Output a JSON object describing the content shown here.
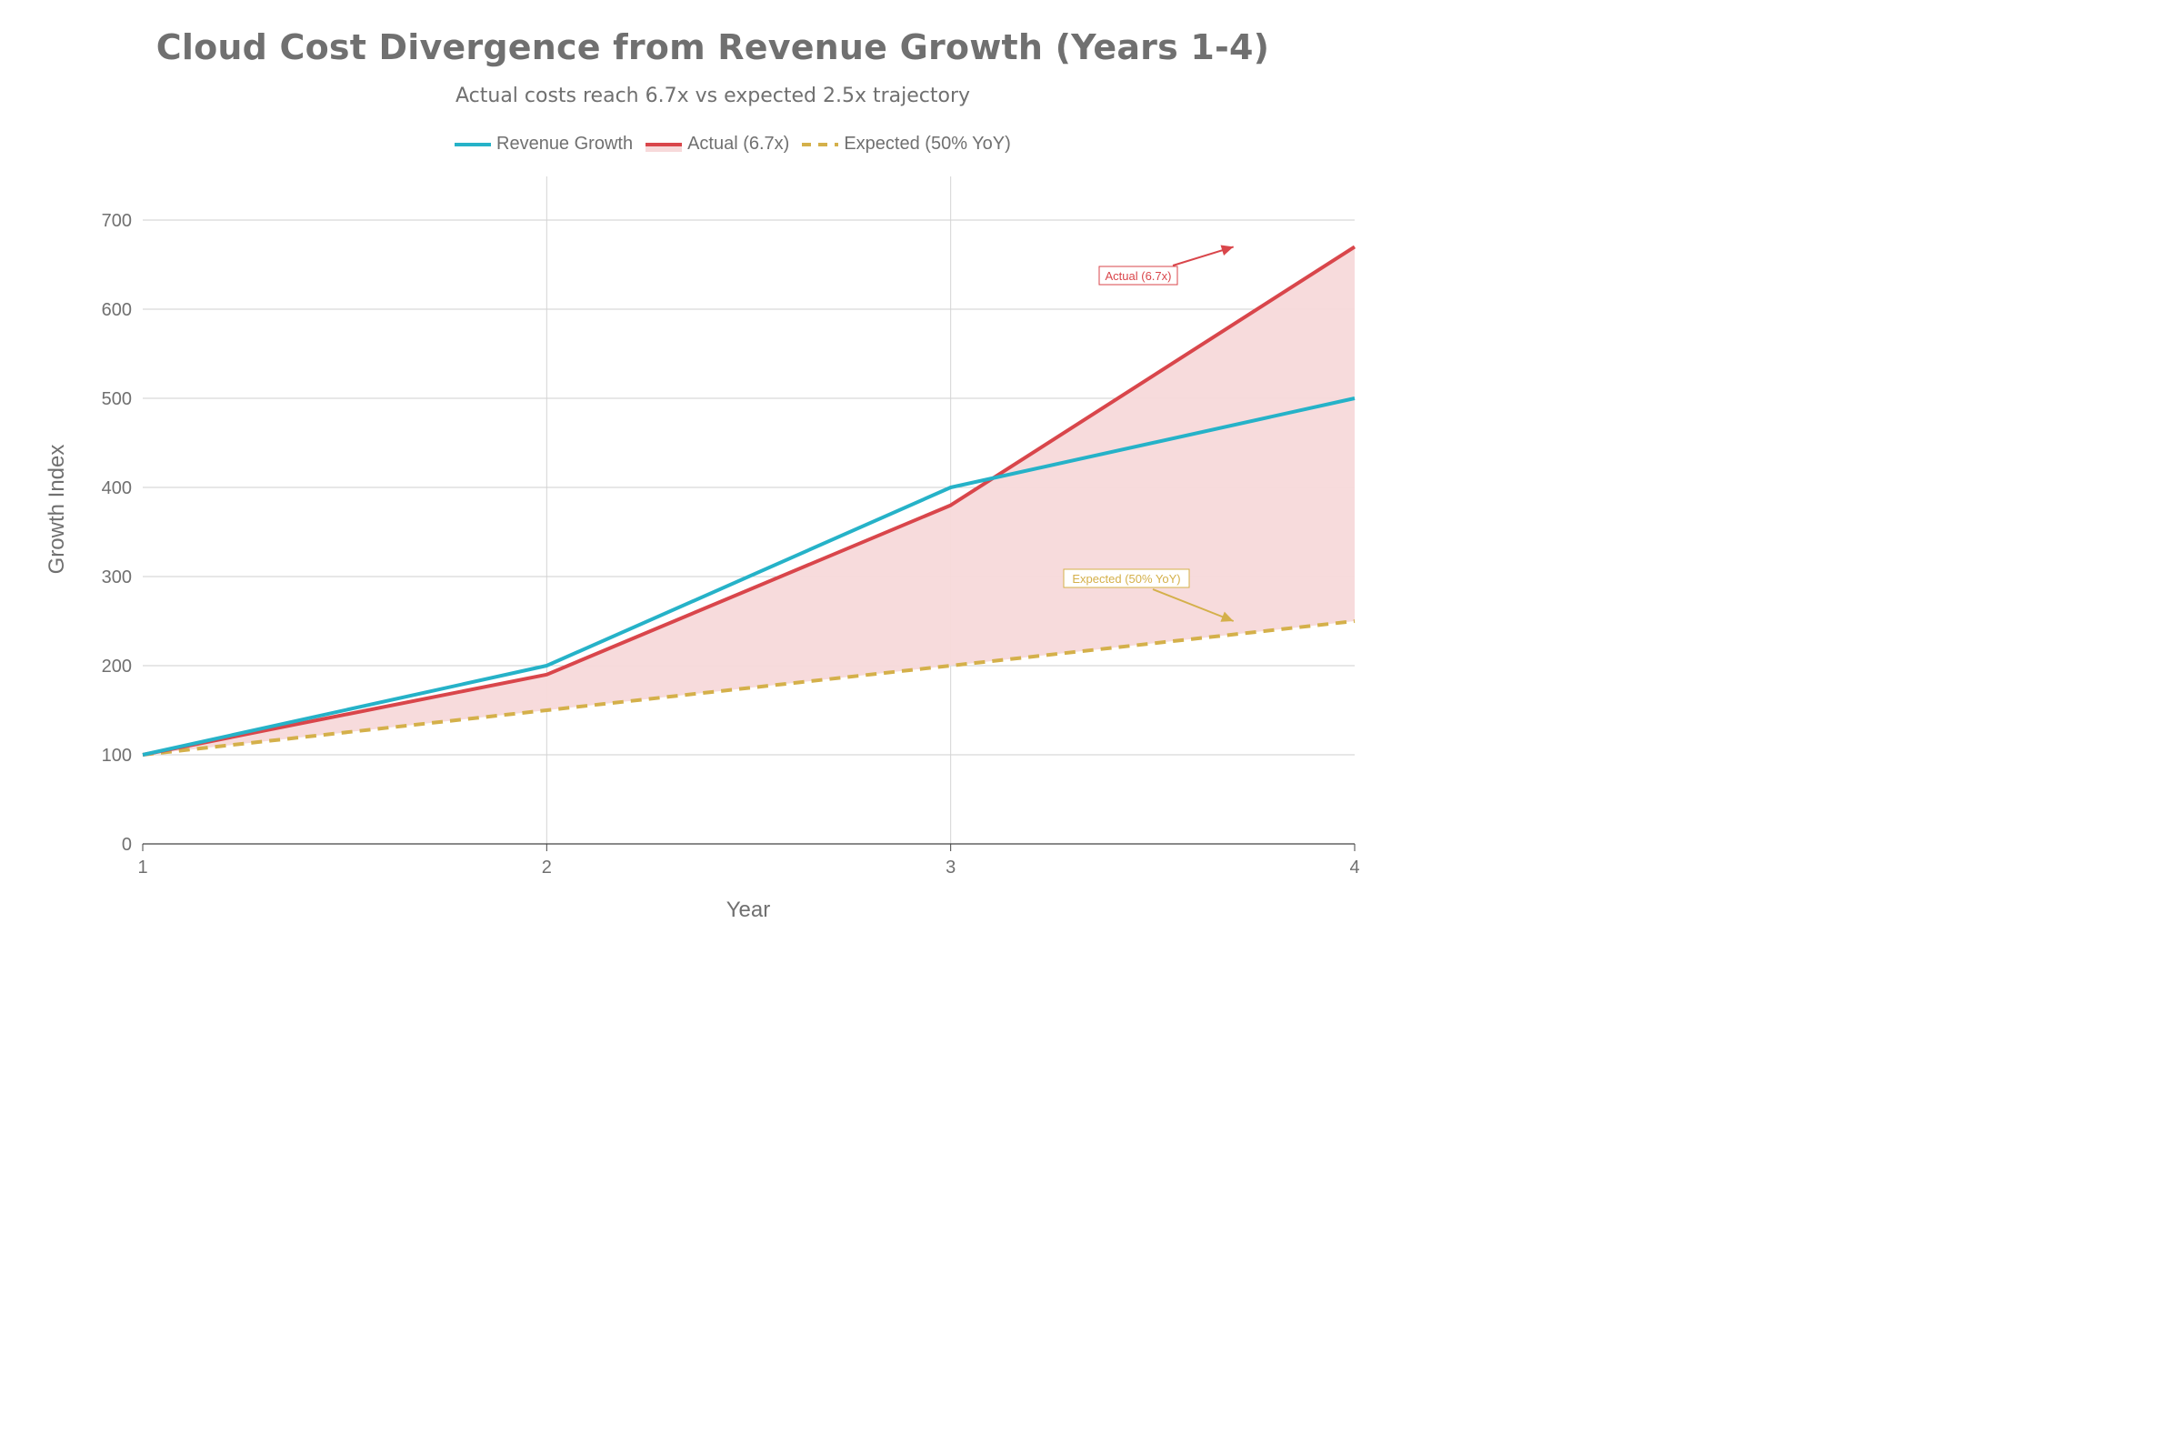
{
  "chart_data": {
    "type": "line",
    "title": "Cloud Cost Divergence from Revenue Growth (Years 1-4)",
    "subtitle": "Actual costs reach 6.7x vs expected 2.5x trajectory",
    "xlabel": "Year",
    "ylabel": "Growth Index",
    "x": [
      1,
      2,
      3,
      4
    ],
    "xlim": [
      1,
      4
    ],
    "ylim": [
      0,
      750
    ],
    "x_ticks": [
      1,
      2,
      3,
      4
    ],
    "y_ticks": [
      0,
      100,
      200,
      300,
      400,
      500,
      600,
      700
    ],
    "grid": true,
    "legend_position": "top-center",
    "fill_between": {
      "upper": "Actual (6.7x)",
      "lower": "Expected (50% YoY)",
      "color": "#f7d9da"
    },
    "series": [
      {
        "name": "Revenue Growth",
        "values": [
          100,
          200,
          400,
          500
        ],
        "color": "#26b2c8",
        "style": "solid"
      },
      {
        "name": "Actual (6.7x)",
        "values": [
          100,
          190,
          380,
          670
        ],
        "color": "#d9464b",
        "style": "solid"
      },
      {
        "name": "Expected (50% YoY)",
        "values": [
          100,
          150,
          200,
          250
        ],
        "color": "#d4b04a",
        "style": "dashed"
      }
    ],
    "annotations": [
      {
        "text": "Actual (6.7x)",
        "color": "#d9464b",
        "arrow_to": {
          "x": 3.7,
          "y": 670
        }
      },
      {
        "text": "Expected (50% YoY)",
        "color": "#d4b04a",
        "arrow_to": {
          "x": 3.7,
          "y": 250
        }
      }
    ]
  }
}
